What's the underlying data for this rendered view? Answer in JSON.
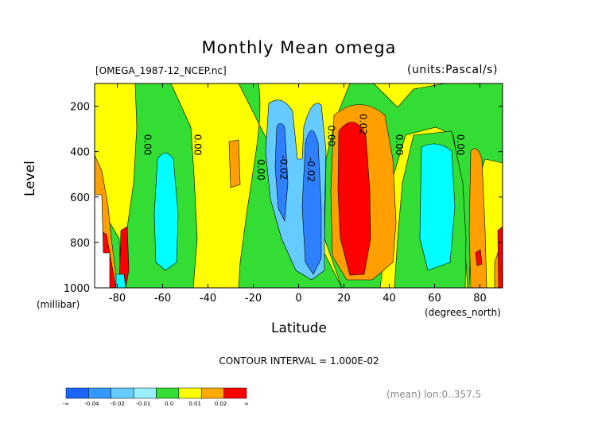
{
  "chart_data": {
    "type": "contour",
    "title": "Monthly Mean omega",
    "file_label": "[OMEGA_1987-12_NCEP.nc]",
    "units_label": "(units:Pascal/s)",
    "xlabel": "Latitude",
    "xlabel_unit": "(degrees_north)",
    "ylabel": "Level",
    "ylabel_unit": "(millibar)",
    "xlim": [
      -90,
      90
    ],
    "ylim": [
      1000,
      100
    ],
    "x_ticks": [
      -80,
      -60,
      -40,
      -20,
      0,
      20,
      40,
      60,
      80
    ],
    "y_ticks": [
      200,
      400,
      600,
      800,
      1000
    ],
    "contour_interval": "CONTOUR INTERVAL = 1.000E-02",
    "footer_note": "(mean) lon:0..357.5",
    "contour_labels": [
      {
        "text": "0.00",
        "lat": -68,
        "level": 370
      },
      {
        "text": "0.00",
        "lat": -46,
        "level": 370
      },
      {
        "text": "0.00",
        "lat": -18,
        "level": 480
      },
      {
        "text": "-0.02",
        "lat": -8,
        "level": 470
      },
      {
        "text": "-0.02",
        "lat": 4,
        "level": 480
      },
      {
        "text": "0.00",
        "lat": 13,
        "level": 330
      },
      {
        "text": "0.02",
        "lat": 27,
        "level": 280
      },
      {
        "text": "0.00",
        "lat": 43,
        "level": 370
      },
      {
        "text": "0.00",
        "lat": 70,
        "level": 370
      }
    ],
    "colorbar": {
      "labels": [
        "-∞",
        "-0.04",
        "-0.02",
        "-0.01",
        "0.0",
        "0.01",
        "0.02",
        "∞"
      ],
      "colors": [
        "#1a66ff",
        "#3399ff",
        "#66ccff",
        "#99eeff",
        "#33dd33",
        "#ffff00",
        "#ffaa00",
        "#ff0000"
      ]
    },
    "fill_colors": {
      "red": "#ff0000",
      "orange": "#ffa000",
      "yellow": "#ffff00",
      "green": "#33dd33",
      "cyan": "#00ffff",
      "lightblue": "#66ccff",
      "blue": "#2f80ff",
      "white": "#ffffff"
    }
  }
}
